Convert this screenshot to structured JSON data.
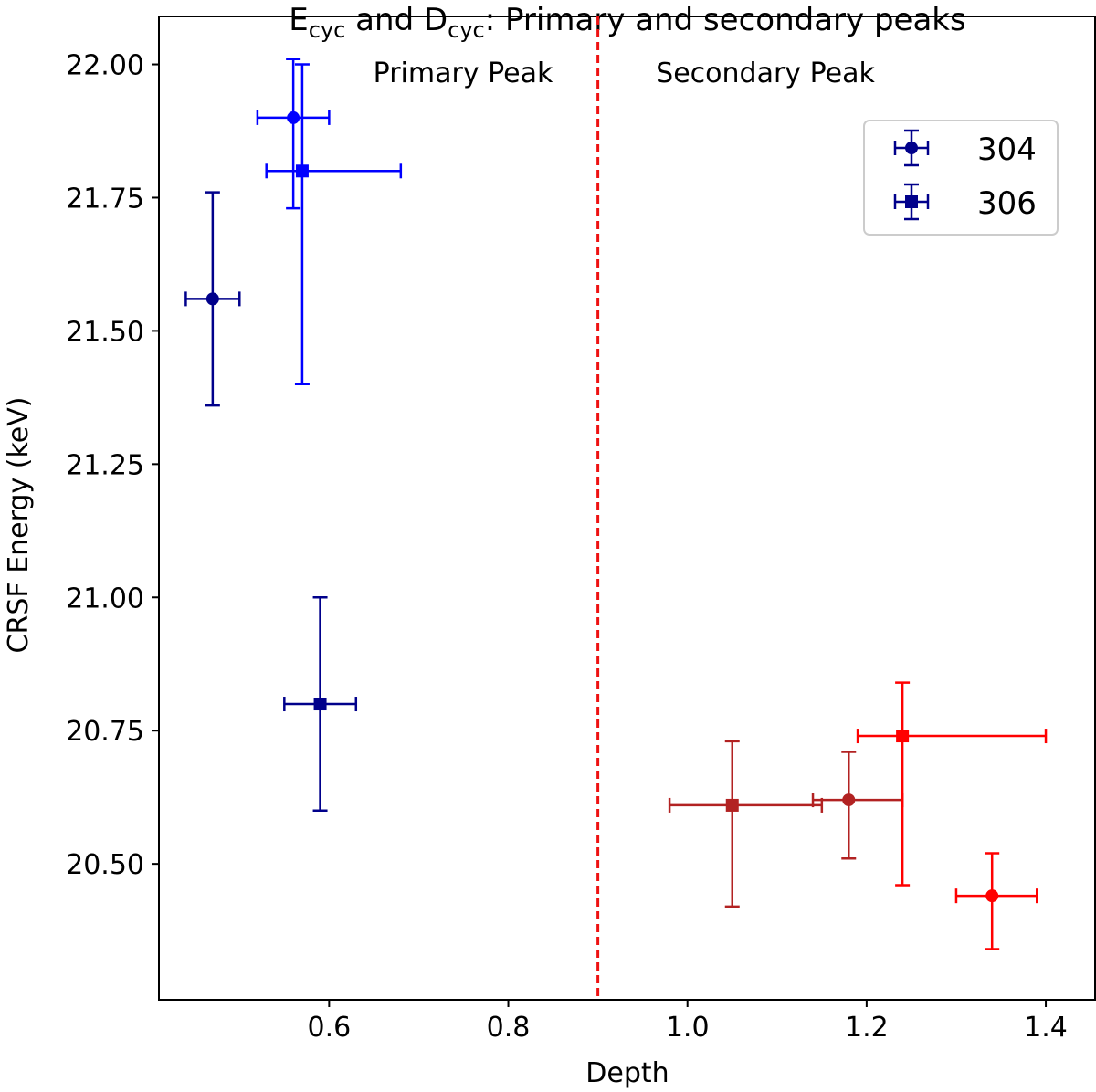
{
  "chart_data": {
    "type": "scatter",
    "title": {
      "main": "E",
      "sub1": "cyc",
      "mid": " and D",
      "sub2": "cyc",
      "rest": ": Primary and secondary peaks"
    },
    "xlabel": "Depth",
    "ylabel": "CRSF Energy (keV)",
    "xlim": [
      0.41,
      1.455
    ],
    "ylim": [
      20.245,
      22.09
    ],
    "xticks": [
      0.6,
      0.8,
      1.0,
      1.2,
      1.4
    ],
    "xtick_labels": [
      "0.6",
      "0.8",
      "1.0",
      "1.2",
      "1.4"
    ],
    "yticks": [
      20.5,
      20.75,
      21.0,
      21.25,
      21.5,
      21.75,
      22.0
    ],
    "ytick_labels": [
      "20.50",
      "20.75",
      "21.00",
      "21.25",
      "21.50",
      "21.75",
      "22.00"
    ],
    "divider_x": 0.9,
    "divider_color": "#ee1111",
    "region_labels": {
      "left": "Primary Peak",
      "right": "Secondary Peak"
    },
    "legend": {
      "position": "top-right",
      "entries": [
        {
          "label": "304",
          "marker": "circle",
          "color": "#00008b"
        },
        {
          "label": "306",
          "marker": "square",
          "color": "#00008b"
        }
      ]
    },
    "series": [
      {
        "name": "304 primary A",
        "marker": "circle",
        "color": "#00008b",
        "x": 0.47,
        "xerr": 0.03,
        "y": 21.56,
        "yerr": 0.2
      },
      {
        "name": "304 primary B",
        "marker": "circle",
        "color": "#0000ff",
        "x": 0.56,
        "xerr": 0.04,
        "y": 21.9,
        "yerr": [
          0.17,
          0.11
        ]
      },
      {
        "name": "306 primary A",
        "marker": "square",
        "color": "#0000ff",
        "x": 0.57,
        "xerr": [
          0.04,
          0.11
        ],
        "y": 21.8,
        "yerr": [
          0.4,
          0.2
        ]
      },
      {
        "name": "306 primary B",
        "marker": "square",
        "color": "#00008b",
        "x": 0.59,
        "xerr": 0.04,
        "y": 20.8,
        "yerr": 0.2
      },
      {
        "name": "306 secondary A",
        "marker": "square",
        "color": "#b22222",
        "x": 1.05,
        "xerr": [
          0.07,
          0.1
        ],
        "y": 20.61,
        "yerr": [
          0.19,
          0.12
        ]
      },
      {
        "name": "304 secondary A",
        "marker": "circle",
        "color": "#b22222",
        "x": 1.18,
        "xerr": [
          0.04,
          0.06
        ],
        "y": 20.62,
        "yerr": [
          0.11,
          0.09
        ]
      },
      {
        "name": "306 secondary B",
        "marker": "square",
        "color": "#ff0000",
        "x": 1.24,
        "xerr": [
          0.05,
          0.16
        ],
        "y": 20.74,
        "yerr": [
          0.28,
          0.1
        ]
      },
      {
        "name": "304 secondary B",
        "marker": "circle",
        "color": "#ff0000",
        "x": 1.34,
        "xerr": [
          0.04,
          0.05
        ],
        "y": 20.44,
        "yerr": [
          0.1,
          0.08
        ]
      }
    ]
  }
}
